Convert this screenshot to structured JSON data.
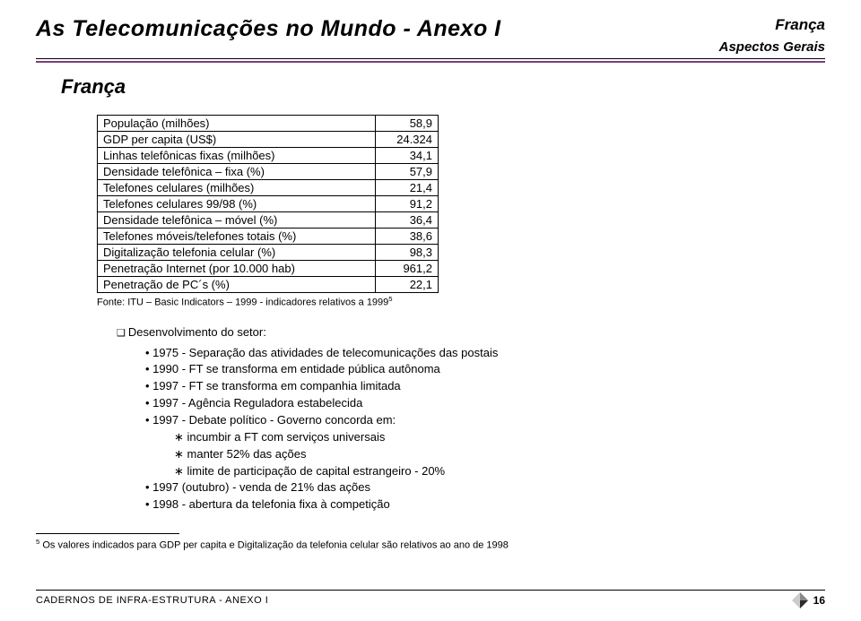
{
  "header": {
    "title": "As Telecomunicações no Mundo - Anexo I",
    "country_top": "França",
    "aspects": "Aspectos Gerais"
  },
  "section_country": "França",
  "table": {
    "rows": [
      {
        "label": "População (milhões)",
        "value": "58,9"
      },
      {
        "label": "GDP per capita (US$)",
        "value": "24.324"
      },
      {
        "label": "Linhas telefônicas fixas (milhões)",
        "value": "34,1"
      },
      {
        "label": "Densidade telefônica – fixa (%)",
        "value": "57,9"
      },
      {
        "label": "Telefones celulares (milhões)",
        "value": "21,4"
      },
      {
        "label": "Telefones celulares 99/98 (%)",
        "value": "91,2"
      },
      {
        "label": "Densidade telefônica – móvel (%)",
        "value": "36,4"
      },
      {
        "label": "Telefones móveis/telefones totais (%)",
        "value": "38,6"
      },
      {
        "label": "Digitalização telefonia celular (%)",
        "value": "98,3"
      },
      {
        "label": "Penetração Internet (por 10.000 hab)",
        "value": "961,2"
      },
      {
        "label": "Penetração de PC´s (%)",
        "value": "22,1"
      }
    ]
  },
  "source_note_prefix": "Fonte: ITU – Basic Indicators – 1999 - indicadores relativos a 1999",
  "source_note_sup": "5",
  "bullets": {
    "lvl1": "Desenvolvimento do setor:",
    "items": [
      {
        "level": 2,
        "text": "1975 - Separação das atividades de telecomunicações das postais"
      },
      {
        "level": 2,
        "text": "1990 - FT se transforma em entidade pública autônoma"
      },
      {
        "level": 2,
        "text": "1997 - FT se transforma em companhia limitada"
      },
      {
        "level": 2,
        "text": "1997 - Agência Reguladora estabelecida"
      },
      {
        "level": 2,
        "text": "1997 - Debate político - Governo concorda em:"
      },
      {
        "level": 3,
        "text": "incumbir a FT com serviços universais"
      },
      {
        "level": 3,
        "text": "manter 52% das ações"
      },
      {
        "level": 3,
        "text": "limite de participação de capital estrangeiro - 20%"
      },
      {
        "level": 2,
        "text": "1997 (outubro) - venda de 21% das ações"
      },
      {
        "level": 2,
        "text": "1998 - abertura da telefonia fixa à competição"
      }
    ]
  },
  "footnote": {
    "sup": "5",
    "text": " Os valores indicados para GDP per capita e Digitalização da telefonia celular são relativos ao ano de 1998"
  },
  "footer": {
    "left": "CADERNOS DE INFRA-ESTRUTURA - ANEXO I",
    "page": "16"
  },
  "colors": {
    "accent_rule": "#7b3f7b",
    "diamond_dark": "#2b2b2b",
    "diamond_mid": "#888888",
    "diamond_light": "#cccccc"
  }
}
